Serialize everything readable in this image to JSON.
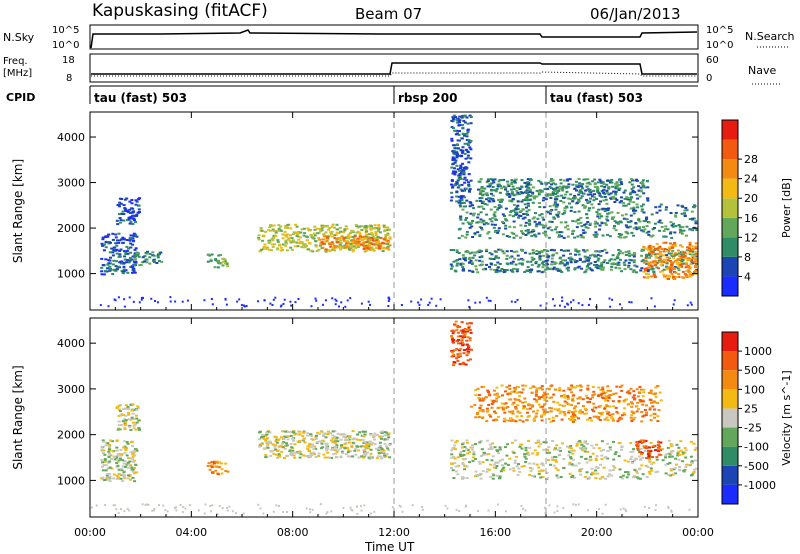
{
  "header": {
    "station": "Kapuskasing (fitACF)",
    "beam": "Beam 07",
    "date": "06/Jan/2013"
  },
  "strip_nsky": {
    "label": "N.Sky",
    "tick_top": "10^5",
    "tick_bottom": "10^0",
    "right_tick_top": "10^5",
    "right_tick_bottom": "10^0",
    "right_label": "N.Search"
  },
  "strip_freq": {
    "label_line1": "Freq.",
    "label_line2": "[MHz]",
    "tick_top": "18",
    "tick_bottom": "8",
    "right_tick_top": "60",
    "right_tick_bottom": "0",
    "right_label": "Nave"
  },
  "cpid": {
    "label": "CPID",
    "segments": [
      {
        "name": "tau (fast) 503",
        "start_hour": 0
      },
      {
        "name": "rbsp 200",
        "start_hour": 12
      },
      {
        "name": "tau (fast) 503",
        "start_hour": 18
      }
    ]
  },
  "x_axis": {
    "label": "Time UT",
    "ticks": [
      "00:00",
      "04:00",
      "08:00",
      "12:00",
      "16:00",
      "20:00",
      "00:00"
    ],
    "range_hours": [
      0,
      24
    ]
  },
  "chart_data": [
    {
      "type": "heatmap",
      "panel": "power",
      "ylabel": "Slant Range [km]",
      "ylim": [
        200,
        4550
      ],
      "yticks": [
        "1000",
        "2000",
        "3000",
        "4000"
      ],
      "colorbar": {
        "label": "Power [dB]",
        "ticks": [
          "4",
          "8",
          "12",
          "16",
          "20",
          "24",
          "28"
        ],
        "colors": [
          "#1a2cff",
          "#1b45b4",
          "#2f8c66",
          "#63a85a",
          "#b3c23a",
          "#f2ba12",
          "#f48a12",
          "#f25a12",
          "#e61c10"
        ]
      },
      "regions": [
        {
          "t": [
            0.4,
            1.8
          ],
          "r": [
            1000,
            1900
          ],
          "level": 1
        },
        {
          "t": [
            1.0,
            1.9
          ],
          "r": [
            2100,
            2700
          ],
          "level": 1
        },
        {
          "t": [
            1.7,
            2.8
          ],
          "r": [
            1200,
            1500
          ],
          "level": 2
        },
        {
          "t": [
            4.6,
            5.4
          ],
          "r": [
            1150,
            1450
          ],
          "level": 3
        },
        {
          "t": [
            6.6,
            11.8
          ],
          "r": [
            1500,
            2100
          ],
          "level": 4
        },
        {
          "t": [
            9.0,
            11.8
          ],
          "r": [
            1550,
            1850
          ],
          "level": 6
        },
        {
          "t": [
            14.2,
            15.0
          ],
          "r": [
            2500,
            4500
          ],
          "level": 1
        },
        {
          "t": [
            14.2,
            23.9
          ],
          "r": [
            1050,
            1550
          ],
          "level": 2
        },
        {
          "t": [
            14.5,
            23.9
          ],
          "r": [
            1800,
            2600
          ],
          "level": 2
        },
        {
          "t": [
            15.2,
            22.0
          ],
          "r": [
            2600,
            3100
          ],
          "level": 2
        },
        {
          "t": [
            21.8,
            23.9
          ],
          "r": [
            900,
            1700
          ],
          "level": 6
        }
      ]
    },
    {
      "type": "heatmap",
      "panel": "velocity",
      "ylabel": "Slant Range [km]",
      "ylim": [
        200,
        4550
      ],
      "yticks": [
        "1000",
        "2000",
        "3000",
        "4000"
      ],
      "colorbar": {
        "label": "Velocity [m s^-1]",
        "ticks": [
          "1000",
          "500",
          "100",
          "25",
          "-25",
          "-100",
          "-500",
          "-1000"
        ],
        "colors": [
          "#1a2cff",
          "#1b45b4",
          "#2f8c66",
          "#63a85a",
          "#c8c8c0",
          "#f2ba12",
          "#f48a12",
          "#f25a12",
          "#e61c10"
        ]
      },
      "regions": [
        {
          "t": [
            0.4,
            1.8
          ],
          "r": [
            1000,
            1900
          ],
          "level": 4
        },
        {
          "t": [
            1.0,
            1.9
          ],
          "r": [
            2100,
            2700
          ],
          "level": 4
        },
        {
          "t": [
            4.6,
            5.4
          ],
          "r": [
            1150,
            1450
          ],
          "level": 6
        },
        {
          "t": [
            6.6,
            11.8
          ],
          "r": [
            1500,
            2100
          ],
          "level": 4
        },
        {
          "t": [
            14.2,
            15.0
          ],
          "r": [
            3500,
            4500
          ],
          "level": 7
        },
        {
          "t": [
            14.2,
            23.9
          ],
          "r": [
            1050,
            1900
          ],
          "level": 4
        },
        {
          "t": [
            15.0,
            22.5
          ],
          "r": [
            2300,
            3100
          ],
          "level": 6
        },
        {
          "t": [
            21.5,
            22.5
          ],
          "r": [
            1500,
            1900
          ],
          "level": 7
        }
      ]
    }
  ]
}
